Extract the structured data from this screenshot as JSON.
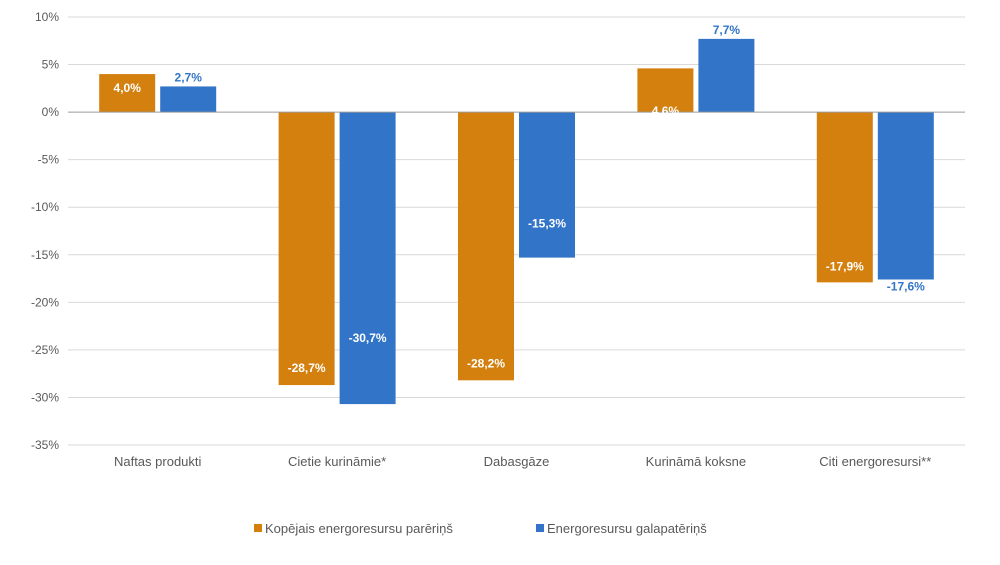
{
  "chart_data": {
    "type": "bar",
    "title": "",
    "xlabel": "",
    "ylabel": "",
    "ylim": [
      -35,
      10
    ],
    "y_ticks": [
      10,
      5,
      0,
      -5,
      -10,
      -15,
      -20,
      -25,
      -30,
      -35
    ],
    "y_tick_labels": [
      "10%",
      "5%",
      "0%",
      "-5%",
      "-10%",
      "-15%",
      "-20%",
      "-25%",
      "-30%",
      "-35%"
    ],
    "grid": true,
    "legend_position": "bottom",
    "categories": [
      "Naftas produkti",
      "Cietie kurināmie*",
      "Dabasgāze",
      "Kurināmā koksne",
      "Citi energoresursi**"
    ],
    "series": [
      {
        "name": "Kopējais energoresursu parēriņš",
        "color": "#D4800E",
        "values": [
          4.0,
          -28.7,
          -28.2,
          4.6,
          -17.9
        ],
        "labels": [
          "4,0%",
          "-28,7%",
          "-28,2%",
          "4,6%",
          "-17,9%"
        ],
        "label_colors": [
          "#ffffff",
          "#ffffff",
          "#ffffff",
          "#ffffff",
          "#ffffff"
        ]
      },
      {
        "name": "Energoresursu galapatēriņš",
        "color": "#3275C8",
        "values": [
          2.7,
          -30.7,
          -15.3,
          7.7,
          -17.6
        ],
        "labels": [
          "2,7%",
          "-30,7%",
          "-15,3%",
          "7,7%",
          "-17,6%"
        ],
        "label_colors": [
          "#3275C8",
          "#ffffff",
          "#ffffff",
          "#3275C8",
          "#3275C8"
        ]
      }
    ]
  }
}
